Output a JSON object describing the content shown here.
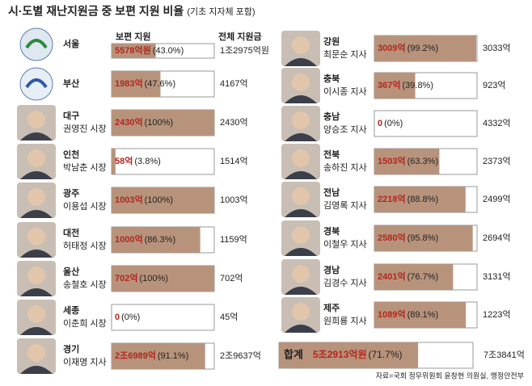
{
  "chart_data": {
    "type": "bar",
    "title": "시·도별 재난지원금 중 보편 지원 비율",
    "subtitle": "(기초 지자체 포함)",
    "header_universal": "보편 지원",
    "header_total": "전체 지원금",
    "categories": [
      "서울",
      "부산",
      "대구",
      "인천",
      "광주",
      "대전",
      "울산",
      "세종",
      "경기",
      "강원",
      "충북",
      "충남",
      "전북",
      "전남",
      "경북",
      "경남",
      "제주"
    ],
    "officials": [
      null,
      null,
      "권영진 시장",
      "박남춘 시장",
      "이용섭 시장",
      "허태정 시장",
      "송철호 시장",
      "이춘희 시장",
      "이재명 지사",
      "최문순 지사",
      "이시종 지사",
      "양승조 지사",
      "송하진 지사",
      "김영록 지사",
      "이철우 지사",
      "김경수 지사",
      "원희룡 지사"
    ],
    "values": [
      43.0,
      47.6,
      100,
      3.8,
      100,
      86.3,
      100,
      0,
      91.1,
      99.2,
      39.8,
      0,
      63.3,
      88.8,
      95.8,
      76.7,
      89.1
    ],
    "value_labels": [
      "(43.0%)",
      "(47.6%)",
      "(100%)",
      "(3.8%)",
      "(100%)",
      "(86.3%)",
      "(100%)",
      "(0%)",
      "(91.1%)",
      "(99.2%)",
      "(39.8%)",
      "(0%)",
      "(63.3%)",
      "(88.8%)",
      "(95.8%)",
      "(76.7%)",
      "(89.1%)"
    ],
    "amount_labels": [
      "5578억원",
      "1983억",
      "2430억",
      "58억",
      "1003억",
      "1000억",
      "702억",
      "0",
      "2조6989억",
      "3009억",
      "367억",
      "0",
      "1503억",
      "2218억",
      "2580억",
      "2401억",
      "1089억"
    ],
    "totals": [
      "1조2975억원",
      "4167억",
      "2430억",
      "1514억",
      "1003억",
      "1159억",
      "702억",
      "45억",
      "2조9637억",
      "3033억",
      "923억",
      "4332억",
      "2373억",
      "2499억",
      "2694억",
      "3131억",
      "1223억"
    ],
    "sum_label": "합계",
    "sum_value": 71.7,
    "sum_value_label": "(71.7%)",
    "sum_amount_label": "5조2913억원",
    "sum_total": "7조3841억",
    "xlim": [
      0,
      100
    ],
    "color": "#b8937c",
    "source": "자료=국회 정무위원회 윤창현 의원실, 행정안전부"
  }
}
